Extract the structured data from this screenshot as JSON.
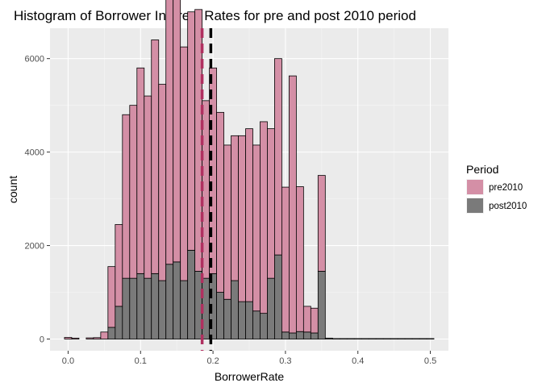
{
  "chart_data": {
    "type": "bar",
    "title": "Histogram of Borrower Interest Rates for pre and post 2010 period",
    "xlabel": "BorrowerRate",
    "ylabel": "count",
    "xlim": [
      -0.025,
      0.525
    ],
    "ylim": [
      -250,
      6650
    ],
    "x_ticks": [
      0.0,
      0.1,
      0.2,
      0.3,
      0.4,
      0.5
    ],
    "x_tick_labels": [
      "0.0",
      "0.1",
      "0.2",
      "0.3",
      "0.4",
      "0.5"
    ],
    "y_ticks": [
      0,
      2000,
      4000,
      6000
    ],
    "y_tick_labels": [
      "0",
      "2000",
      "4000",
      "6000"
    ],
    "grid": true,
    "legend": {
      "title": "Period",
      "position": "right"
    },
    "bin_width": 0.01,
    "bin_centers": [
      0.0,
      0.01,
      0.02,
      0.03,
      0.04,
      0.05,
      0.06,
      0.07,
      0.08,
      0.09,
      0.1,
      0.11,
      0.12,
      0.13,
      0.14,
      0.15,
      0.16,
      0.17,
      0.18,
      0.19,
      0.2,
      0.21,
      0.22,
      0.23,
      0.24,
      0.25,
      0.26,
      0.27,
      0.28,
      0.29,
      0.3,
      0.31,
      0.32,
      0.33,
      0.34,
      0.35,
      0.36,
      0.37,
      0.38,
      0.39,
      0.4,
      0.41,
      0.42,
      0.43,
      0.44,
      0.45,
      0.46,
      0.47,
      0.48,
      0.49,
      0.5
    ],
    "series": [
      {
        "name": "pre2010",
        "color": "#d48fa6",
        "values": [
          35,
          20,
          0,
          25,
          30,
          150,
          1300,
          1750,
          3500,
          3700,
          4400,
          3900,
          5000,
          4200,
          6300,
          5700,
          5000,
          5100,
          5600,
          3800,
          4400,
          3850,
          3300,
          3100,
          3550,
          3700,
          3550,
          4100,
          3200,
          4200,
          3100,
          5500,
          3100,
          550,
          530,
          2050,
          0,
          0,
          0,
          0,
          0,
          0,
          0,
          0,
          0,
          0,
          0,
          0,
          0,
          0,
          0
        ]
      },
      {
        "name": "post2010",
        "color": "#7a7a7a",
        "values": [
          0,
          0,
          0,
          0,
          0,
          0,
          250,
          700,
          1300,
          1300,
          1400,
          1300,
          1400,
          1250,
          1600,
          1650,
          1250,
          1900,
          1450,
          1300,
          1400,
          1000,
          850,
          1250,
          800,
          800,
          600,
          550,
          1300,
          1800,
          150,
          130,
          160,
          150,
          130,
          1450,
          20,
          10,
          10,
          10,
          10,
          10,
          10,
          10,
          10,
          10,
          10,
          10,
          10,
          10,
          10
        ]
      }
    ],
    "reference_lines": [
      {
        "period": "pre2010",
        "x": 0.185,
        "color": "#b03060",
        "style": "dashed"
      },
      {
        "period": "post2010",
        "x": 0.197,
        "color": "#000000",
        "style": "dashed"
      }
    ]
  }
}
